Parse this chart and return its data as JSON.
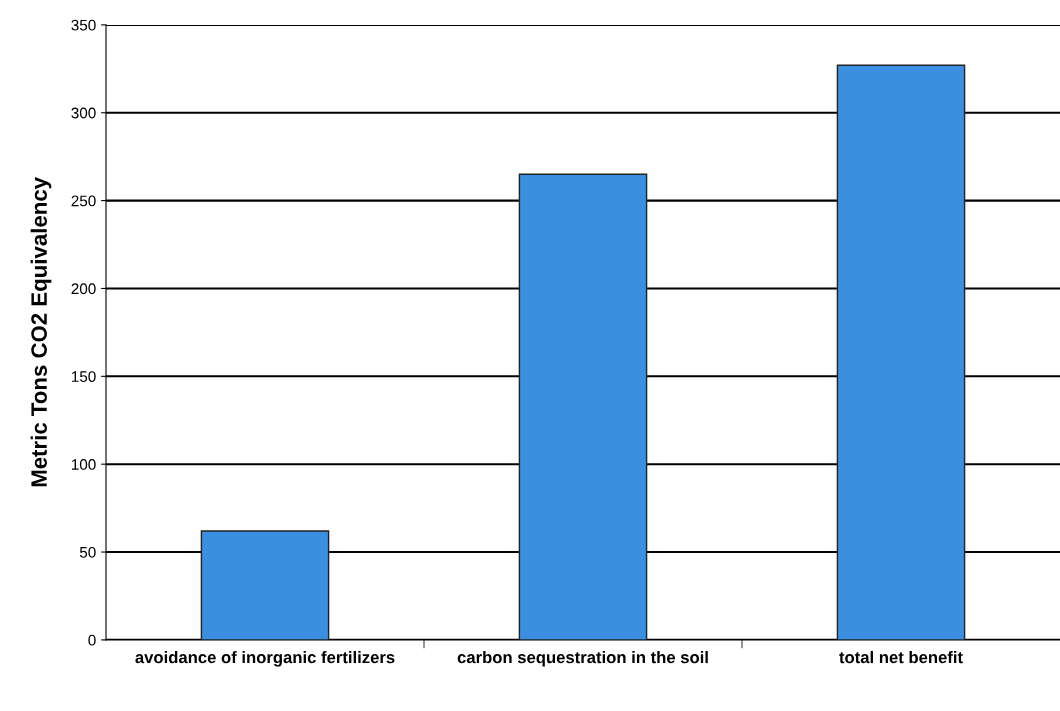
{
  "chart_data": {
    "type": "bar",
    "ylabel": "Metric Tons CO2 Equivalency",
    "categories": [
      "avoidance of inorganic fertilizers",
      "carbon sequestration in the soil",
      "total net benefit"
    ],
    "values": [
      62,
      265,
      327
    ],
    "color": "#3a8fe0",
    "ylim": [
      0,
      350
    ],
    "yticks": [
      0,
      50,
      100,
      150,
      200,
      250,
      300,
      350
    ],
    "grid": "y"
  }
}
